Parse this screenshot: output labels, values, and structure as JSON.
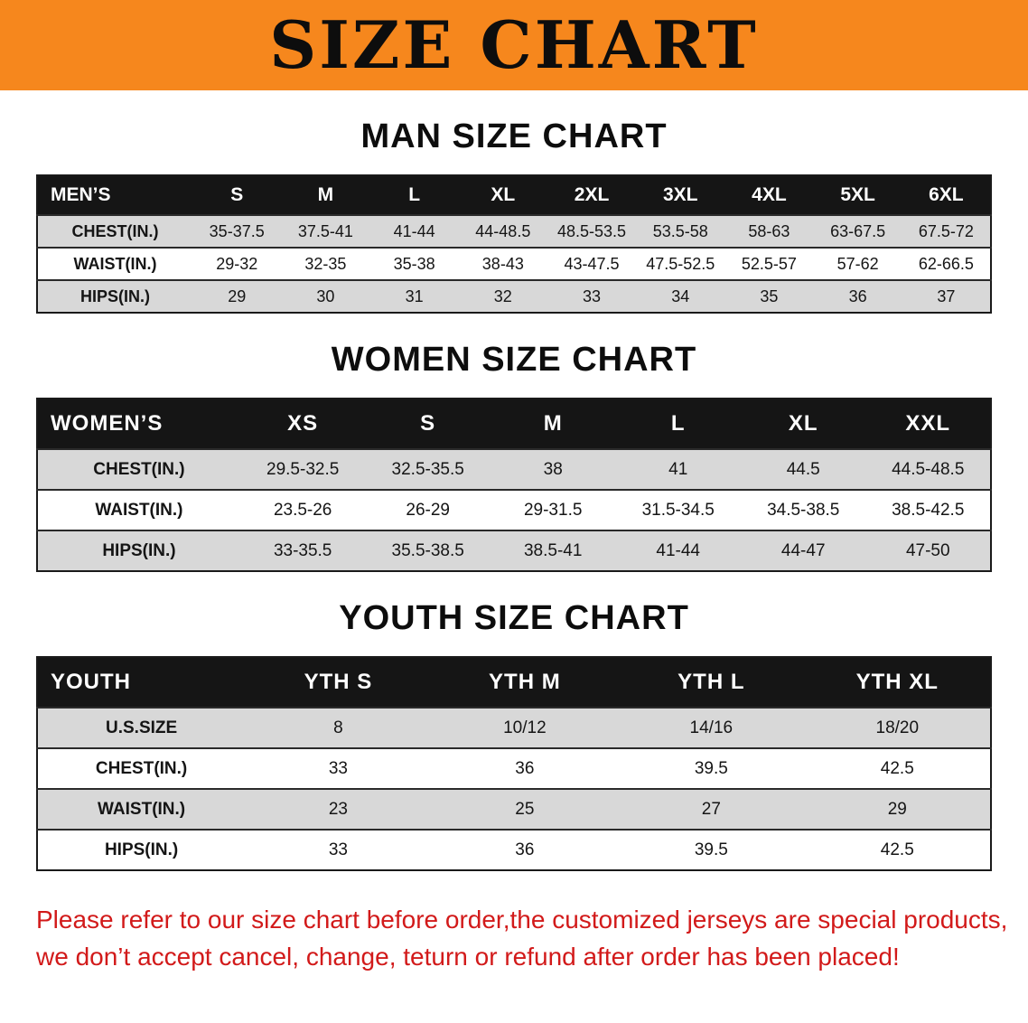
{
  "banner": {
    "title": "SIZE CHART",
    "bg_color": "#F6871D"
  },
  "sections": [
    {
      "heading": "MAN SIZE CHART",
      "table": {
        "header": [
          "MEN’S",
          "S",
          "M",
          "L",
          "XL",
          "2XL",
          "3XL",
          "4XL",
          "5XL",
          "6XL"
        ],
        "rows": [
          [
            "CHEST(IN.)",
            "35-37.5",
            "37.5-41",
            "41-44",
            "44-48.5",
            "48.5-53.5",
            "53.5-58",
            "58-63",
            "63-67.5",
            "67.5-72"
          ],
          [
            "WAIST(IN.)",
            "29-32",
            "32-35",
            "35-38",
            "38-43",
            "43-47.5",
            "47.5-52.5",
            "52.5-57",
            "57-62",
            "62-66.5"
          ],
          [
            "HIPS(IN.)",
            "29",
            "30",
            "31",
            "32",
            "33",
            "34",
            "35",
            "36",
            "37"
          ]
        ]
      }
    },
    {
      "heading": "WOMEN SIZE CHART",
      "table": {
        "header": [
          "WOMEN’S",
          "XS",
          "S",
          "M",
          "L",
          "XL",
          "XXL"
        ],
        "rows": [
          [
            "CHEST(IN.)",
            "29.5-32.5",
            "32.5-35.5",
            "38",
            "41",
            "44.5",
            "44.5-48.5"
          ],
          [
            "WAIST(IN.)",
            "23.5-26",
            "26-29",
            "29-31.5",
            "31.5-34.5",
            "34.5-38.5",
            "38.5-42.5"
          ],
          [
            "HIPS(IN.)",
            "33-35.5",
            "35.5-38.5",
            "38.5-41",
            "41-44",
            "44-47",
            "47-50"
          ]
        ]
      }
    },
    {
      "heading": "YOUTH SIZE CHART",
      "table": {
        "header": [
          "YOUTH",
          "YTH S",
          "YTH M",
          "YTH L",
          "YTH XL"
        ],
        "rows": [
          [
            "U.S.SIZE",
            "8",
            "10/12",
            "14/16",
            "18/20"
          ],
          [
            "CHEST(IN.)",
            "33",
            "36",
            "39.5",
            "42.5"
          ],
          [
            "WAIST(IN.)",
            "23",
            "25",
            "27",
            "29"
          ],
          [
            "HIPS(IN.)",
            "33",
            "36",
            "39.5",
            "42.5"
          ]
        ]
      }
    }
  ],
  "disclaimer": {
    "line1": "Please refer to our size chart before order,the customized jerseys are special products,",
    "line2": "we don’t accept cancel, change, teturn or refund after order has been placed!",
    "text_color": "#D21A1A"
  }
}
